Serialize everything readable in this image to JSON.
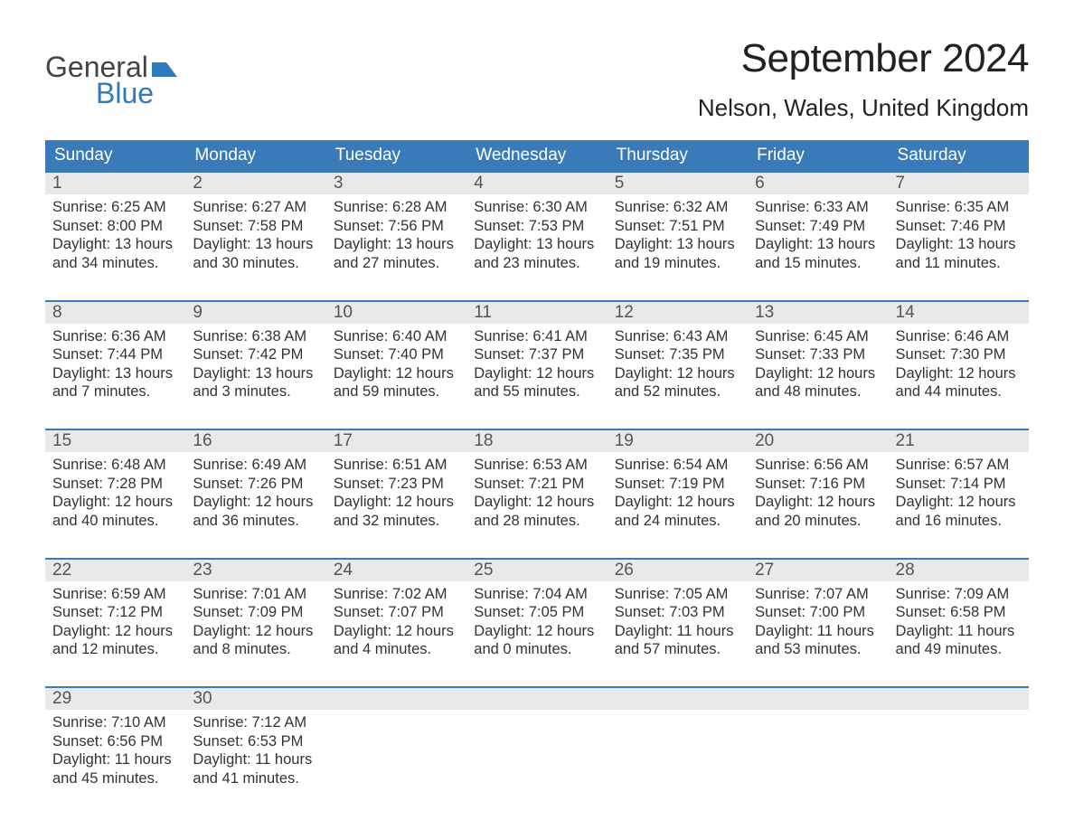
{
  "logo": {
    "word1": "General",
    "word2": "Blue"
  },
  "title": "September 2024",
  "location": "Nelson, Wales, United Kingdom",
  "colors": {
    "brand_blue": "#3a7ab8",
    "brand_blue_text": "#2e7abf",
    "row_alt_bg": "#e9e9e9",
    "text": "#333333",
    "background": "#ffffff"
  },
  "calendar": {
    "type": "calendar-grid",
    "columns": 7,
    "weekdays": [
      "Sunday",
      "Monday",
      "Tuesday",
      "Wednesday",
      "Thursday",
      "Friday",
      "Saturday"
    ],
    "days": [
      {
        "n": "1",
        "sunrise": "Sunrise: 6:25 AM",
        "sunset": "Sunset: 8:00 PM",
        "dl1": "Daylight: 13 hours",
        "dl2": "and 34 minutes."
      },
      {
        "n": "2",
        "sunrise": "Sunrise: 6:27 AM",
        "sunset": "Sunset: 7:58 PM",
        "dl1": "Daylight: 13 hours",
        "dl2": "and 30 minutes."
      },
      {
        "n": "3",
        "sunrise": "Sunrise: 6:28 AM",
        "sunset": "Sunset: 7:56 PM",
        "dl1": "Daylight: 13 hours",
        "dl2": "and 27 minutes."
      },
      {
        "n": "4",
        "sunrise": "Sunrise: 6:30 AM",
        "sunset": "Sunset: 7:53 PM",
        "dl1": "Daylight: 13 hours",
        "dl2": "and 23 minutes."
      },
      {
        "n": "5",
        "sunrise": "Sunrise: 6:32 AM",
        "sunset": "Sunset: 7:51 PM",
        "dl1": "Daylight: 13 hours",
        "dl2": "and 19 minutes."
      },
      {
        "n": "6",
        "sunrise": "Sunrise: 6:33 AM",
        "sunset": "Sunset: 7:49 PM",
        "dl1": "Daylight: 13 hours",
        "dl2": "and 15 minutes."
      },
      {
        "n": "7",
        "sunrise": "Sunrise: 6:35 AM",
        "sunset": "Sunset: 7:46 PM",
        "dl1": "Daylight: 13 hours",
        "dl2": "and 11 minutes."
      },
      {
        "n": "8",
        "sunrise": "Sunrise: 6:36 AM",
        "sunset": "Sunset: 7:44 PM",
        "dl1": "Daylight: 13 hours",
        "dl2": "and 7 minutes."
      },
      {
        "n": "9",
        "sunrise": "Sunrise: 6:38 AM",
        "sunset": "Sunset: 7:42 PM",
        "dl1": "Daylight: 13 hours",
        "dl2": "and 3 minutes."
      },
      {
        "n": "10",
        "sunrise": "Sunrise: 6:40 AM",
        "sunset": "Sunset: 7:40 PM",
        "dl1": "Daylight: 12 hours",
        "dl2": "and 59 minutes."
      },
      {
        "n": "11",
        "sunrise": "Sunrise: 6:41 AM",
        "sunset": "Sunset: 7:37 PM",
        "dl1": "Daylight: 12 hours",
        "dl2": "and 55 minutes."
      },
      {
        "n": "12",
        "sunrise": "Sunrise: 6:43 AM",
        "sunset": "Sunset: 7:35 PM",
        "dl1": "Daylight: 12 hours",
        "dl2": "and 52 minutes."
      },
      {
        "n": "13",
        "sunrise": "Sunrise: 6:45 AM",
        "sunset": "Sunset: 7:33 PM",
        "dl1": "Daylight: 12 hours",
        "dl2": "and 48 minutes."
      },
      {
        "n": "14",
        "sunrise": "Sunrise: 6:46 AM",
        "sunset": "Sunset: 7:30 PM",
        "dl1": "Daylight: 12 hours",
        "dl2": "and 44 minutes."
      },
      {
        "n": "15",
        "sunrise": "Sunrise: 6:48 AM",
        "sunset": "Sunset: 7:28 PM",
        "dl1": "Daylight: 12 hours",
        "dl2": "and 40 minutes."
      },
      {
        "n": "16",
        "sunrise": "Sunrise: 6:49 AM",
        "sunset": "Sunset: 7:26 PM",
        "dl1": "Daylight: 12 hours",
        "dl2": "and 36 minutes."
      },
      {
        "n": "17",
        "sunrise": "Sunrise: 6:51 AM",
        "sunset": "Sunset: 7:23 PM",
        "dl1": "Daylight: 12 hours",
        "dl2": "and 32 minutes."
      },
      {
        "n": "18",
        "sunrise": "Sunrise: 6:53 AM",
        "sunset": "Sunset: 7:21 PM",
        "dl1": "Daylight: 12 hours",
        "dl2": "and 28 minutes."
      },
      {
        "n": "19",
        "sunrise": "Sunrise: 6:54 AM",
        "sunset": "Sunset: 7:19 PM",
        "dl1": "Daylight: 12 hours",
        "dl2": "and 24 minutes."
      },
      {
        "n": "20",
        "sunrise": "Sunrise: 6:56 AM",
        "sunset": "Sunset: 7:16 PM",
        "dl1": "Daylight: 12 hours",
        "dl2": "and 20 minutes."
      },
      {
        "n": "21",
        "sunrise": "Sunrise: 6:57 AM",
        "sunset": "Sunset: 7:14 PM",
        "dl1": "Daylight: 12 hours",
        "dl2": "and 16 minutes."
      },
      {
        "n": "22",
        "sunrise": "Sunrise: 6:59 AM",
        "sunset": "Sunset: 7:12 PM",
        "dl1": "Daylight: 12 hours",
        "dl2": "and 12 minutes."
      },
      {
        "n": "23",
        "sunrise": "Sunrise: 7:01 AM",
        "sunset": "Sunset: 7:09 PM",
        "dl1": "Daylight: 12 hours",
        "dl2": "and 8 minutes."
      },
      {
        "n": "24",
        "sunrise": "Sunrise: 7:02 AM",
        "sunset": "Sunset: 7:07 PM",
        "dl1": "Daylight: 12 hours",
        "dl2": "and 4 minutes."
      },
      {
        "n": "25",
        "sunrise": "Sunrise: 7:04 AM",
        "sunset": "Sunset: 7:05 PM",
        "dl1": "Daylight: 12 hours",
        "dl2": "and 0 minutes."
      },
      {
        "n": "26",
        "sunrise": "Sunrise: 7:05 AM",
        "sunset": "Sunset: 7:03 PM",
        "dl1": "Daylight: 11 hours",
        "dl2": "and 57 minutes."
      },
      {
        "n": "27",
        "sunrise": "Sunrise: 7:07 AM",
        "sunset": "Sunset: 7:00 PM",
        "dl1": "Daylight: 11 hours",
        "dl2": "and 53 minutes."
      },
      {
        "n": "28",
        "sunrise": "Sunrise: 7:09 AM",
        "sunset": "Sunset: 6:58 PM",
        "dl1": "Daylight: 11 hours",
        "dl2": "and 49 minutes."
      },
      {
        "n": "29",
        "sunrise": "Sunrise: 7:10 AM",
        "sunset": "Sunset: 6:56 PM",
        "dl1": "Daylight: 11 hours",
        "dl2": "and 45 minutes."
      },
      {
        "n": "30",
        "sunrise": "Sunrise: 7:12 AM",
        "sunset": "Sunset: 6:53 PM",
        "dl1": "Daylight: 11 hours",
        "dl2": "and 41 minutes."
      }
    ],
    "leading_blanks": 0,
    "trailing_blanks": 5
  }
}
